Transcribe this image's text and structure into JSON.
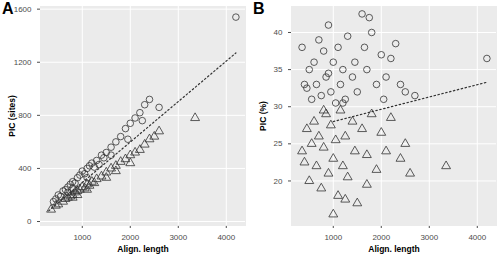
{
  "chart_data": [
    {
      "type": "scatter",
      "title": "A",
      "x_label": "Align. length",
      "y_label": "PIC (sites)",
      "xlim": [
        130,
        4400
      ],
      "xticks": [
        1000,
        2000,
        3000,
        4000
      ],
      "ylim": [
        -30,
        1620
      ],
      "yticks": [
        0,
        400,
        800,
        1200,
        1600
      ],
      "grid": true,
      "series": [
        {
          "marker": "circle",
          "color": "#333333",
          "values": [
            [
              400,
              150
            ],
            [
              450,
              170
            ],
            [
              500,
              200
            ],
            [
              550,
              190
            ],
            [
              600,
              230
            ],
            [
              650,
              240
            ],
            [
              700,
              260
            ],
            [
              750,
              280
            ],
            [
              800,
              300
            ],
            [
              850,
              290
            ],
            [
              900,
              330
            ],
            [
              950,
              350
            ],
            [
              1000,
              380
            ],
            [
              1050,
              360
            ],
            [
              1100,
              400
            ],
            [
              1150,
              420
            ],
            [
              1200,
              440
            ],
            [
              1250,
              410
            ],
            [
              1300,
              460
            ],
            [
              1400,
              500
            ],
            [
              1450,
              480
            ],
            [
              1500,
              520
            ],
            [
              1600,
              560
            ],
            [
              1700,
              600
            ],
            [
              1800,
              640
            ],
            [
              1900,
              700
            ],
            [
              2000,
              740
            ],
            [
              2100,
              780
            ],
            [
              2200,
              820
            ],
            [
              2300,
              880
            ],
            [
              2400,
              920
            ],
            [
              2600,
              860
            ],
            [
              4200,
              1540
            ],
            [
              800,
              250
            ],
            [
              1100,
              330
            ],
            [
              1350,
              430
            ],
            [
              1600,
              500
            ],
            [
              1950,
              620
            ],
            [
              2250,
              760
            ],
            [
              700,
              220
            ]
          ]
        },
        {
          "marker": "triangle",
          "color": "#333333",
          "values": [
            [
              350,
              90
            ],
            [
              450,
              120
            ],
            [
              500,
              130
            ],
            [
              600,
              150
            ],
            [
              650,
              170
            ],
            [
              700,
              180
            ],
            [
              750,
              190
            ],
            [
              800,
              200
            ],
            [
              850,
              220
            ],
            [
              900,
              230
            ],
            [
              950,
              240
            ],
            [
              1000,
              260
            ],
            [
              1050,
              250
            ],
            [
              1100,
              280
            ],
            [
              1150,
              270
            ],
            [
              1200,
              300
            ],
            [
              1300,
              320
            ],
            [
              1400,
              340
            ],
            [
              1500,
              370
            ],
            [
              1600,
              400
            ],
            [
              1700,
              420
            ],
            [
              1800,
              450
            ],
            [
              1900,
              470
            ],
            [
              2000,
              500
            ],
            [
              2100,
              520
            ],
            [
              2200,
              540
            ],
            [
              2300,
              580
            ],
            [
              2400,
              620
            ],
            [
              2500,
              640
            ],
            [
              2600,
              680
            ],
            [
              3350,
              780
            ],
            [
              1100,
              240
            ],
            [
              1250,
              290
            ],
            [
              900,
              200
            ],
            [
              1700,
              380
            ],
            [
              2000,
              440
            ],
            [
              1500,
              330
            ],
            [
              800,
              180
            ]
          ]
        },
        {
          "type": "line",
          "line_style": "dotted",
          "color": "#333333",
          "values": [
            [
              300,
              80
            ],
            [
              4200,
              1270
            ]
          ]
        }
      ]
    },
    {
      "type": "scatter",
      "title": "B",
      "x_label": "Align. length",
      "y_label": "PIC (%)",
      "xlim": [
        130,
        4400
      ],
      "xticks": [
        1000,
        2000,
        3000,
        4000
      ],
      "ylim": [
        14,
        43.5
      ],
      "yticks": [
        20,
        25,
        30,
        35,
        40
      ],
      "grid": true,
      "series": [
        {
          "marker": "circle",
          "color": "#333333",
          "values": [
            [
              350,
              38
            ],
            [
              400,
              33
            ],
            [
              450,
              32.5
            ],
            [
              500,
              35
            ],
            [
              550,
              31
            ],
            [
              600,
              36
            ],
            [
              650,
              33
            ],
            [
              700,
              39
            ],
            [
              750,
              31.5
            ],
            [
              800,
              37.5
            ],
            [
              850,
              34
            ],
            [
              900,
              41
            ],
            [
              950,
              32
            ],
            [
              1000,
              36
            ],
            [
              1050,
              30.5
            ],
            [
              1100,
              38
            ],
            [
              1150,
              33
            ],
            [
              1200,
              35
            ],
            [
              1250,
              31
            ],
            [
              1300,
              39.5
            ],
            [
              1400,
              34
            ],
            [
              1450,
              36
            ],
            [
              1500,
              32
            ],
            [
              1600,
              42.5
            ],
            [
              1650,
              38
            ],
            [
              1700,
              35
            ],
            [
              1800,
              40
            ],
            [
              1900,
              33
            ],
            [
              2000,
              37
            ],
            [
              2100,
              34
            ],
            [
              2200,
              36.5
            ],
            [
              2300,
              38.5
            ],
            [
              2400,
              33
            ],
            [
              2500,
              32
            ],
            [
              2700,
              31.5
            ],
            [
              4200,
              36.5
            ],
            [
              1200,
              30.5
            ],
            [
              900,
              34.5
            ],
            [
              1750,
              42
            ],
            [
              2050,
              31
            ]
          ]
        },
        {
          "marker": "triangle",
          "color": "#333333",
          "values": [
            [
              350,
              24
            ],
            [
              400,
              22.5
            ],
            [
              450,
              27
            ],
            [
              500,
              20
            ],
            [
              550,
              25
            ],
            [
              600,
              28
            ],
            [
              650,
              22
            ],
            [
              700,
              26
            ],
            [
              750,
              19
            ],
            [
              800,
              24.5
            ],
            [
              850,
              29
            ],
            [
              900,
              21
            ],
            [
              950,
              27.5
            ],
            [
              1000,
              23
            ],
            [
              1050,
              25.5
            ],
            [
              1100,
              18
            ],
            [
              1150,
              29.5
            ],
            [
              1200,
              22
            ],
            [
              1250,
              26
            ],
            [
              1300,
              20.5
            ],
            [
              1400,
              28
            ],
            [
              1450,
              24
            ],
            [
              1500,
              17
            ],
            [
              1600,
              27
            ],
            [
              1700,
              23.5
            ],
            [
              1800,
              29
            ],
            [
              1900,
              21.5
            ],
            [
              2000,
              26.5
            ],
            [
              2100,
              24
            ],
            [
              2200,
              28.5
            ],
            [
              2400,
              23
            ],
            [
              2500,
              25
            ],
            [
              2600,
              21
            ],
            [
              3350,
              22
            ],
            [
              1000,
              15.5
            ],
            [
              1250,
              17.5
            ],
            [
              1700,
              19.5
            ],
            [
              800,
              29.5
            ]
          ]
        },
        {
          "type": "line",
          "line_style": "dotted",
          "color": "#333333",
          "values": [
            [
              1000,
              28
            ],
            [
              4200,
              33.3
            ]
          ]
        }
      ]
    }
  ]
}
